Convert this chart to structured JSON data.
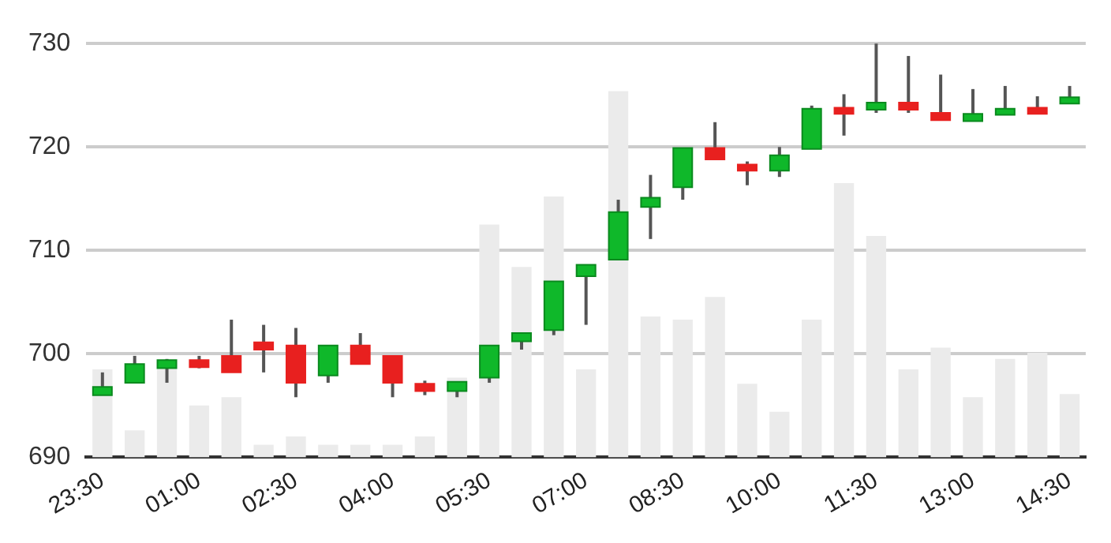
{
  "chart_data": {
    "type": "candlestick",
    "categories": [
      "23:30",
      null,
      null,
      "01:00",
      null,
      null,
      "02:30",
      null,
      null,
      "04:00",
      null,
      null,
      "05:30",
      null,
      null,
      "07:00",
      null,
      null,
      "08:30",
      null,
      null,
      "10:00",
      null,
      null,
      "11:30",
      null,
      null,
      "13:00",
      null,
      null,
      "14:30"
    ],
    "ohlc": [
      [
        696.0,
        698.2,
        696.0,
        696.8
      ],
      [
        697.2,
        699.8,
        697.2,
        699.0
      ],
      [
        698.6,
        699.5,
        697.2,
        699.4
      ],
      [
        699.4,
        699.8,
        698.6,
        698.7
      ],
      [
        699.8,
        703.3,
        698.2,
        698.2
      ],
      [
        701.1,
        702.8,
        698.2,
        700.4
      ],
      [
        700.8,
        702.5,
        695.8,
        697.2
      ],
      [
        697.9,
        700.8,
        697.2,
        700.8
      ],
      [
        700.8,
        702.0,
        699.0,
        699.0
      ],
      [
        699.8,
        699.8,
        695.8,
        697.2
      ],
      [
        697.1,
        697.4,
        696.0,
        696.4
      ],
      [
        696.4,
        697.3,
        695.8,
        697.3
      ],
      [
        697.7,
        700.8,
        697.2,
        700.8
      ],
      [
        701.2,
        702.0,
        700.4,
        702.0
      ],
      [
        702.3,
        707.0,
        701.8,
        707.0
      ],
      [
        707.5,
        708.6,
        702.8,
        708.6
      ],
      [
        709.1,
        714.9,
        709.1,
        713.7
      ],
      [
        714.2,
        717.3,
        711.1,
        715.1
      ],
      [
        716.1,
        719.9,
        714.9,
        719.9
      ],
      [
        719.9,
        722.4,
        718.8,
        718.8
      ],
      [
        718.3,
        718.6,
        716.3,
        717.7
      ],
      [
        717.7,
        720.0,
        717.1,
        719.2
      ],
      [
        719.8,
        724.0,
        719.8,
        723.7
      ],
      [
        723.8,
        725.1,
        721.1,
        723.2
      ],
      [
        723.6,
        730.0,
        723.3,
        724.3
      ],
      [
        724.3,
        728.8,
        723.3,
        723.6
      ],
      [
        723.3,
        727.0,
        722.6,
        722.6
      ],
      [
        722.5,
        725.6,
        722.5,
        723.2
      ],
      [
        723.1,
        725.9,
        723.1,
        723.7
      ],
      [
        723.8,
        724.9,
        723.2,
        723.2
      ],
      [
        724.2,
        725.9,
        724.2,
        724.8
      ]
    ],
    "colors": [
      "#0fb82a",
      "#0fb82a",
      "#0fb82a",
      "#e8201f",
      "#e8201f",
      "#e8201f",
      "#e8201f",
      "#0fb82a",
      "#e8201f",
      "#e8201f",
      "#e8201f",
      "#0fb82a",
      "#0fb82a",
      "#0fb82a",
      "#0fb82a",
      "#0fb82a",
      "#0fb82a",
      "#0fb82a",
      "#0fb82a",
      "#e8201f",
      "#e8201f",
      "#0fb82a",
      "#0fb82a",
      "#e8201f",
      "#0fb82a",
      "#e8201f",
      "#e8201f",
      "#0fb82a",
      "#0fb82a",
      "#e8201f",
      "#0fb82a"
    ],
    "series": [
      {
        "type": "bar",
        "color": "#ebebeb",
        "values": [
          698.5,
          692.6,
          698.5,
          695.0,
          695.8,
          691.2,
          692.0,
          691.2,
          691.2,
          691.2,
          692.0,
          697.7,
          712.5,
          708.4,
          715.2,
          698.5,
          725.4,
          703.6,
          703.3,
          705.5,
          697.1,
          694.4,
          703.3,
          716.5,
          711.4,
          698.5,
          700.6,
          695.8,
          699.5,
          700.1,
          696.1
        ]
      }
    ],
    "ylim": [
      690,
      730
    ],
    "yticks": [
      690,
      700,
      710,
      720,
      730
    ],
    "grid": "y",
    "legend": false
  }
}
